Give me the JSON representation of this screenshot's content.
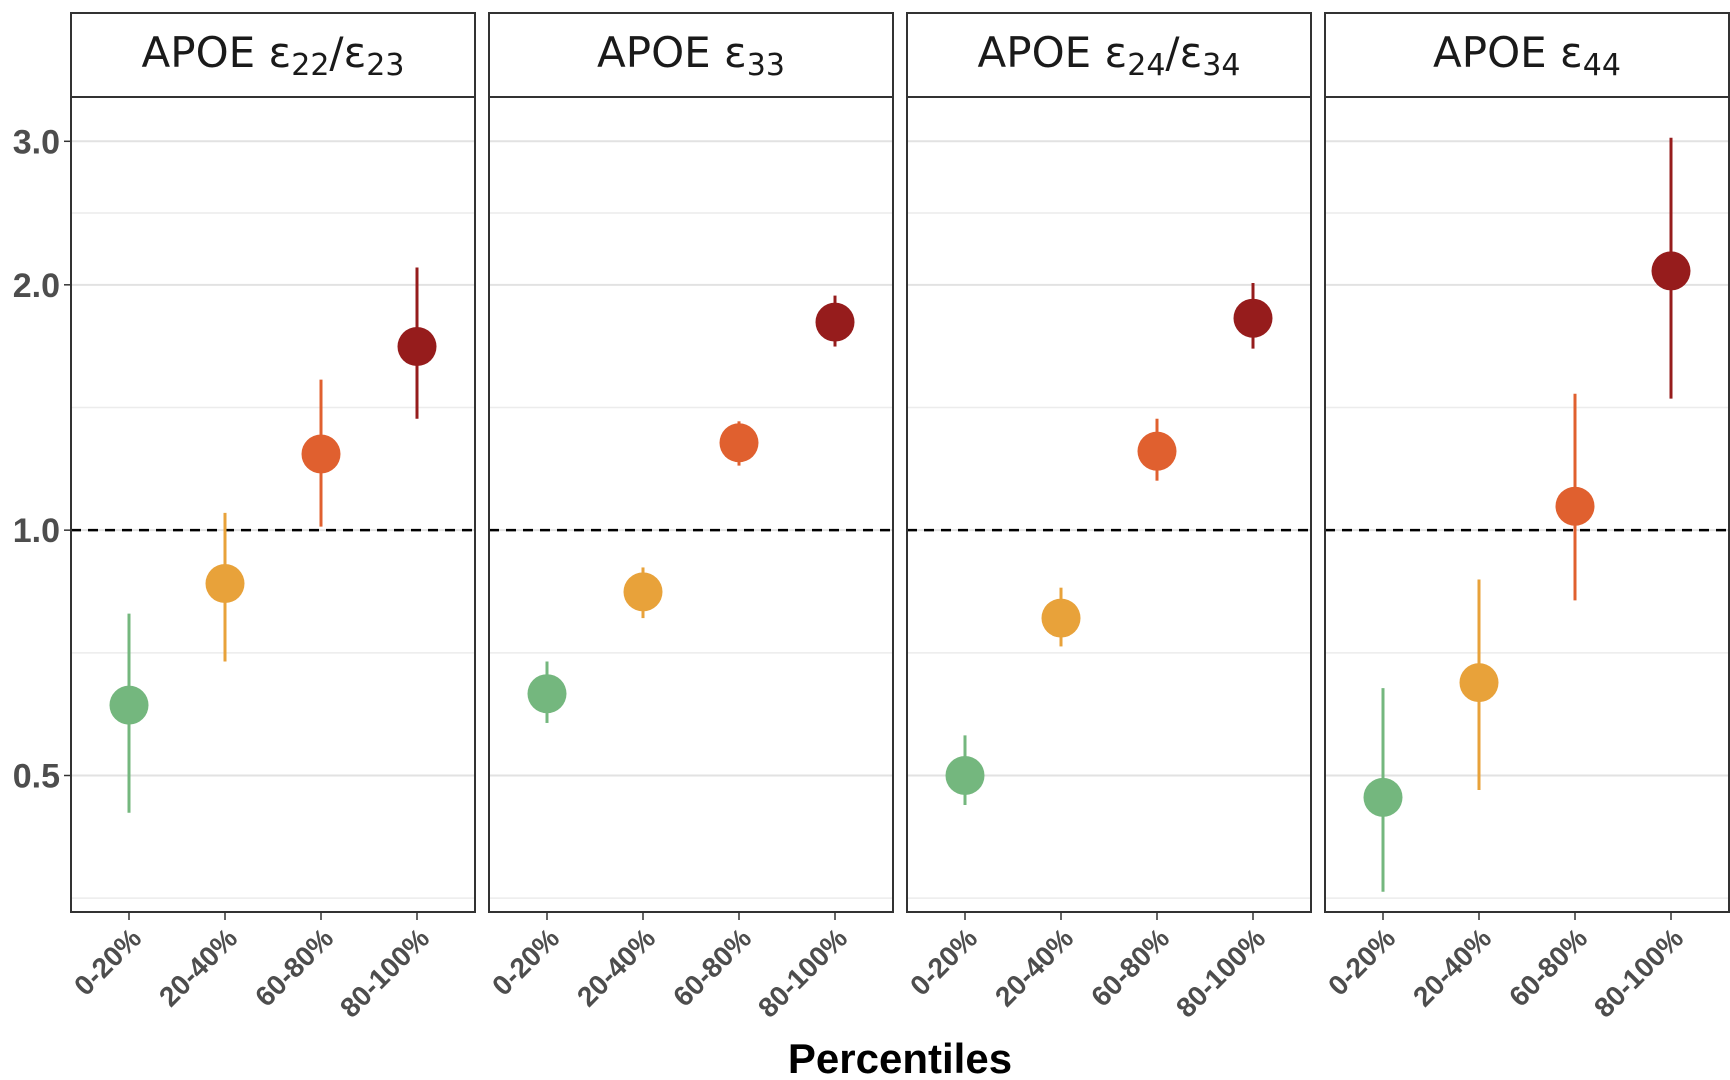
{
  "chart_data": {
    "type": "scatter",
    "xlabel": "Percentiles",
    "ylabel": "",
    "y_scale": "log",
    "ylim": [
      0.34,
      3.4
    ],
    "y_ticks": [
      0.5,
      1.0,
      2.0,
      3.0
    ],
    "y_tick_labels": [
      "0.5",
      "1.0",
      "2.0",
      "3.0"
    ],
    "reference_line": 1.0,
    "categories": [
      "0-20%",
      "20-40%",
      "60-80%",
      "80-100%"
    ],
    "colors": [
      "#74b77e",
      "#e8a23a",
      "#e0602f",
      "#961c1c"
    ],
    "panels": [
      {
        "title": "APOE ε22/ε23",
        "title_parts": [
          {
            "t": "APOE ε",
            "sub": false
          },
          {
            "t": "22",
            "sub": true
          },
          {
            "t": "/ε",
            "sub": false
          },
          {
            "t": "23",
            "sub": true
          }
        ],
        "points": [
          {
            "category": "0-20%",
            "estimate": 0.61,
            "lower": 0.45,
            "upper": 0.79
          },
          {
            "category": "20-40%",
            "estimate": 0.86,
            "lower": 0.69,
            "upper": 1.05
          },
          {
            "category": "60-80%",
            "estimate": 1.24,
            "lower": 1.01,
            "upper": 1.53
          },
          {
            "category": "80-100%",
            "estimate": 1.68,
            "lower": 1.37,
            "upper": 2.1
          }
        ]
      },
      {
        "title": "APOE ε33",
        "title_parts": [
          {
            "t": "APOE ε",
            "sub": false
          },
          {
            "t": "33",
            "sub": true
          }
        ],
        "points": [
          {
            "category": "0-20%",
            "estimate": 0.63,
            "lower": 0.58,
            "upper": 0.69
          },
          {
            "category": "20-40%",
            "estimate": 0.84,
            "lower": 0.78,
            "upper": 0.9
          },
          {
            "category": "60-80%",
            "estimate": 1.28,
            "lower": 1.2,
            "upper": 1.36
          },
          {
            "category": "80-100%",
            "estimate": 1.8,
            "lower": 1.68,
            "upper": 1.94
          }
        ]
      },
      {
        "title": "APOE ε24/ε34",
        "title_parts": [
          {
            "t": "APOE ε",
            "sub": false
          },
          {
            "t": "24",
            "sub": true
          },
          {
            "t": "/ε",
            "sub": false
          },
          {
            "t": "34",
            "sub": true
          }
        ],
        "points": [
          {
            "category": "0-20%",
            "estimate": 0.5,
            "lower": 0.46,
            "upper": 0.56
          },
          {
            "category": "20-40%",
            "estimate": 0.78,
            "lower": 0.72,
            "upper": 0.85
          },
          {
            "category": "60-80%",
            "estimate": 1.25,
            "lower": 1.15,
            "upper": 1.37
          },
          {
            "category": "80-100%",
            "estimate": 1.82,
            "lower": 1.67,
            "upper": 2.01
          }
        ]
      },
      {
        "title": "APOE ε44",
        "title_parts": [
          {
            "t": "APOE ε",
            "sub": false
          },
          {
            "t": "44",
            "sub": true
          }
        ],
        "points": [
          {
            "category": "0-20%",
            "estimate": 0.47,
            "lower": 0.36,
            "upper": 0.64
          },
          {
            "category": "20-40%",
            "estimate": 0.65,
            "lower": 0.48,
            "upper": 0.87
          },
          {
            "category": "60-80%",
            "estimate": 1.07,
            "lower": 0.82,
            "upper": 1.47
          },
          {
            "category": "80-100%",
            "estimate": 2.08,
            "lower": 1.45,
            "upper": 3.03
          }
        ]
      }
    ]
  }
}
